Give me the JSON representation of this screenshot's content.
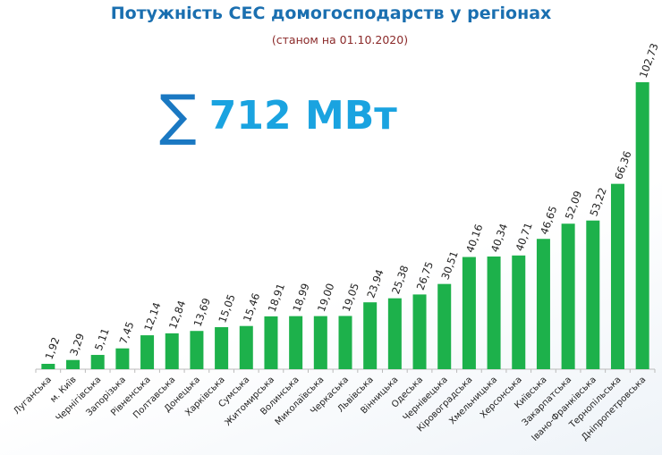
{
  "chart_data": {
    "type": "bar",
    "title": "Потужність СЕС домогосподарств у регіонах",
    "subtitle": "(станом на 01.10.2020)",
    "total_label": "712 МВт",
    "total_icon": "sigma-icon",
    "categories": [
      "Луганська",
      "м. Київ",
      "Чернігівська",
      "Запорізька",
      "Рівненська",
      "Полтавська",
      "Донецька",
      "Харківська",
      "Сумська",
      "Житомирська",
      "Волинська",
      "Миколаївська",
      "Черкаська",
      "Львівська",
      "Вінницька",
      "Одеська",
      "Чернівецька",
      "Кіровоградська",
      "Хмельницька",
      "Херсонська",
      "Київська",
      "Закарпатська",
      "Івано-Франківська",
      "Тернопільська",
      "Дніпропетровська"
    ],
    "values": [
      1.92,
      3.29,
      5.11,
      7.45,
      12.14,
      12.84,
      13.69,
      15.05,
      15.46,
      18.91,
      18.99,
      19.0,
      19.05,
      23.94,
      25.38,
      26.75,
      30.51,
      40.16,
      40.34,
      40.71,
      46.65,
      52.09,
      53.22,
      66.36,
      102.73
    ],
    "value_labels": [
      "1,92",
      "3,29",
      "5,11",
      "7,45",
      "12,14",
      "12,84",
      "13,69",
      "15,05",
      "15,46",
      "18,91",
      "18,99",
      "19,00",
      "19,05",
      "23,94",
      "25,38",
      "26,75",
      "30,51",
      "40,16",
      "40,34",
      "40,71",
      "46,65",
      "52,09",
      "53,22",
      "66,36",
      "102,73"
    ],
    "xlabel": "",
    "ylabel": "",
    "ylim": [
      0,
      103
    ],
    "grid": false,
    "bar_color": "#1db14b"
  }
}
